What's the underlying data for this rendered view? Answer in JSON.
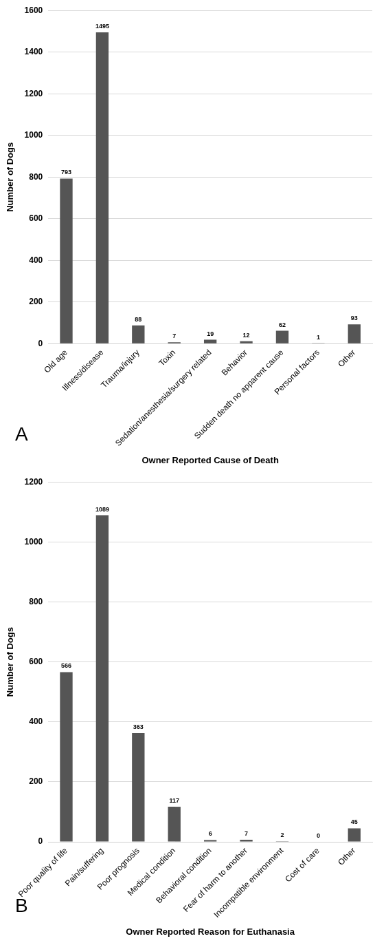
{
  "chart_data": [
    {
      "type": "bar",
      "categories": [
        "Old age",
        "Illness/disease",
        "Trauma/injury",
        "Toxin",
        "Sedation/anesthesia/surgery related",
        "Behavior",
        "Sudden death no apparent cause",
        "Personal factors",
        "Other"
      ],
      "values": [
        793,
        1495,
        88,
        7,
        19,
        12,
        62,
        1,
        93
      ],
      "color": "#555555",
      "ylim": [
        0,
        1600
      ],
      "yticks": [
        0,
        200,
        400,
        600,
        800,
        1000,
        1200,
        1400,
        1600
      ],
      "grid": "y",
      "xlabel": "Owner Reported Cause of Death",
      "ylabel": "Number of Dogs",
      "data_labels": true,
      "annotations": [
        "A"
      ]
    },
    {
      "type": "bar",
      "categories": [
        "Poor quality of life",
        "Pain/suffering",
        "Poor prognosis",
        "Medical condition",
        "Behavioral condition",
        "Fear of harm to another",
        "Incompatible environment",
        "Cost of care",
        "Other"
      ],
      "values": [
        566,
        1089,
        363,
        117,
        6,
        7,
        2,
        0,
        45
      ],
      "color": "#555555",
      "ylim": [
        0,
        1200
      ],
      "yticks": [
        0,
        200,
        400,
        600,
        800,
        1000,
        1200
      ],
      "grid": "y",
      "xlabel": "Owner Reported Reason for Euthanasia",
      "ylabel": "Number of Dogs",
      "data_labels": true,
      "annotations": [
        "B"
      ]
    }
  ]
}
